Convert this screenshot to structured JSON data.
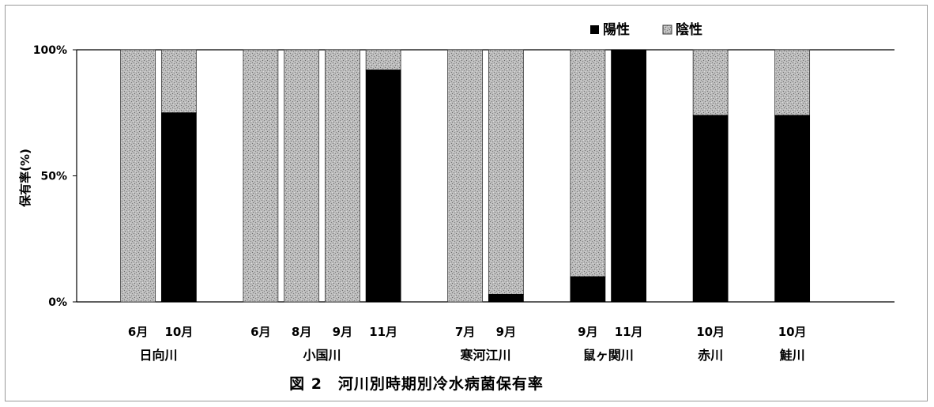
{
  "chart_data": {
    "type": "bar",
    "stacked": true,
    "title": "",
    "caption": "図 2　河川別時期別冷水病菌保有率",
    "ylabel": "保有率(%)",
    "xlabel": "",
    "ylim": [
      0,
      100
    ],
    "yticks": [
      "0%",
      "50%",
      "100%"
    ],
    "grid": false,
    "legend_position": "top-right",
    "groups": [
      {
        "name": "日向川",
        "months": [
          "6月",
          "10月"
        ],
        "positive": [
          0,
          75
        ]
      },
      {
        "name": "小国川",
        "months": [
          "6月",
          "8月",
          "9月",
          "11月"
        ],
        "positive": [
          0,
          0,
          0,
          92
        ]
      },
      {
        "name": "寒河江川",
        "months": [
          "7月",
          "9月"
        ],
        "positive": [
          0,
          3
        ]
      },
      {
        "name": "鼠ヶ関川",
        "months": [
          "9月",
          "11月"
        ],
        "positive": [
          10,
          100
        ]
      },
      {
        "name": "赤川",
        "months": [
          "10月"
        ],
        "positive": [
          74
        ]
      },
      {
        "name": "鮭川",
        "months": [
          "10月"
        ],
        "positive": [
          74
        ]
      }
    ],
    "series": [
      {
        "name": "陽性",
        "color": "#000000"
      },
      {
        "name": "陰性",
        "color": "#a8a8a8"
      }
    ]
  }
}
